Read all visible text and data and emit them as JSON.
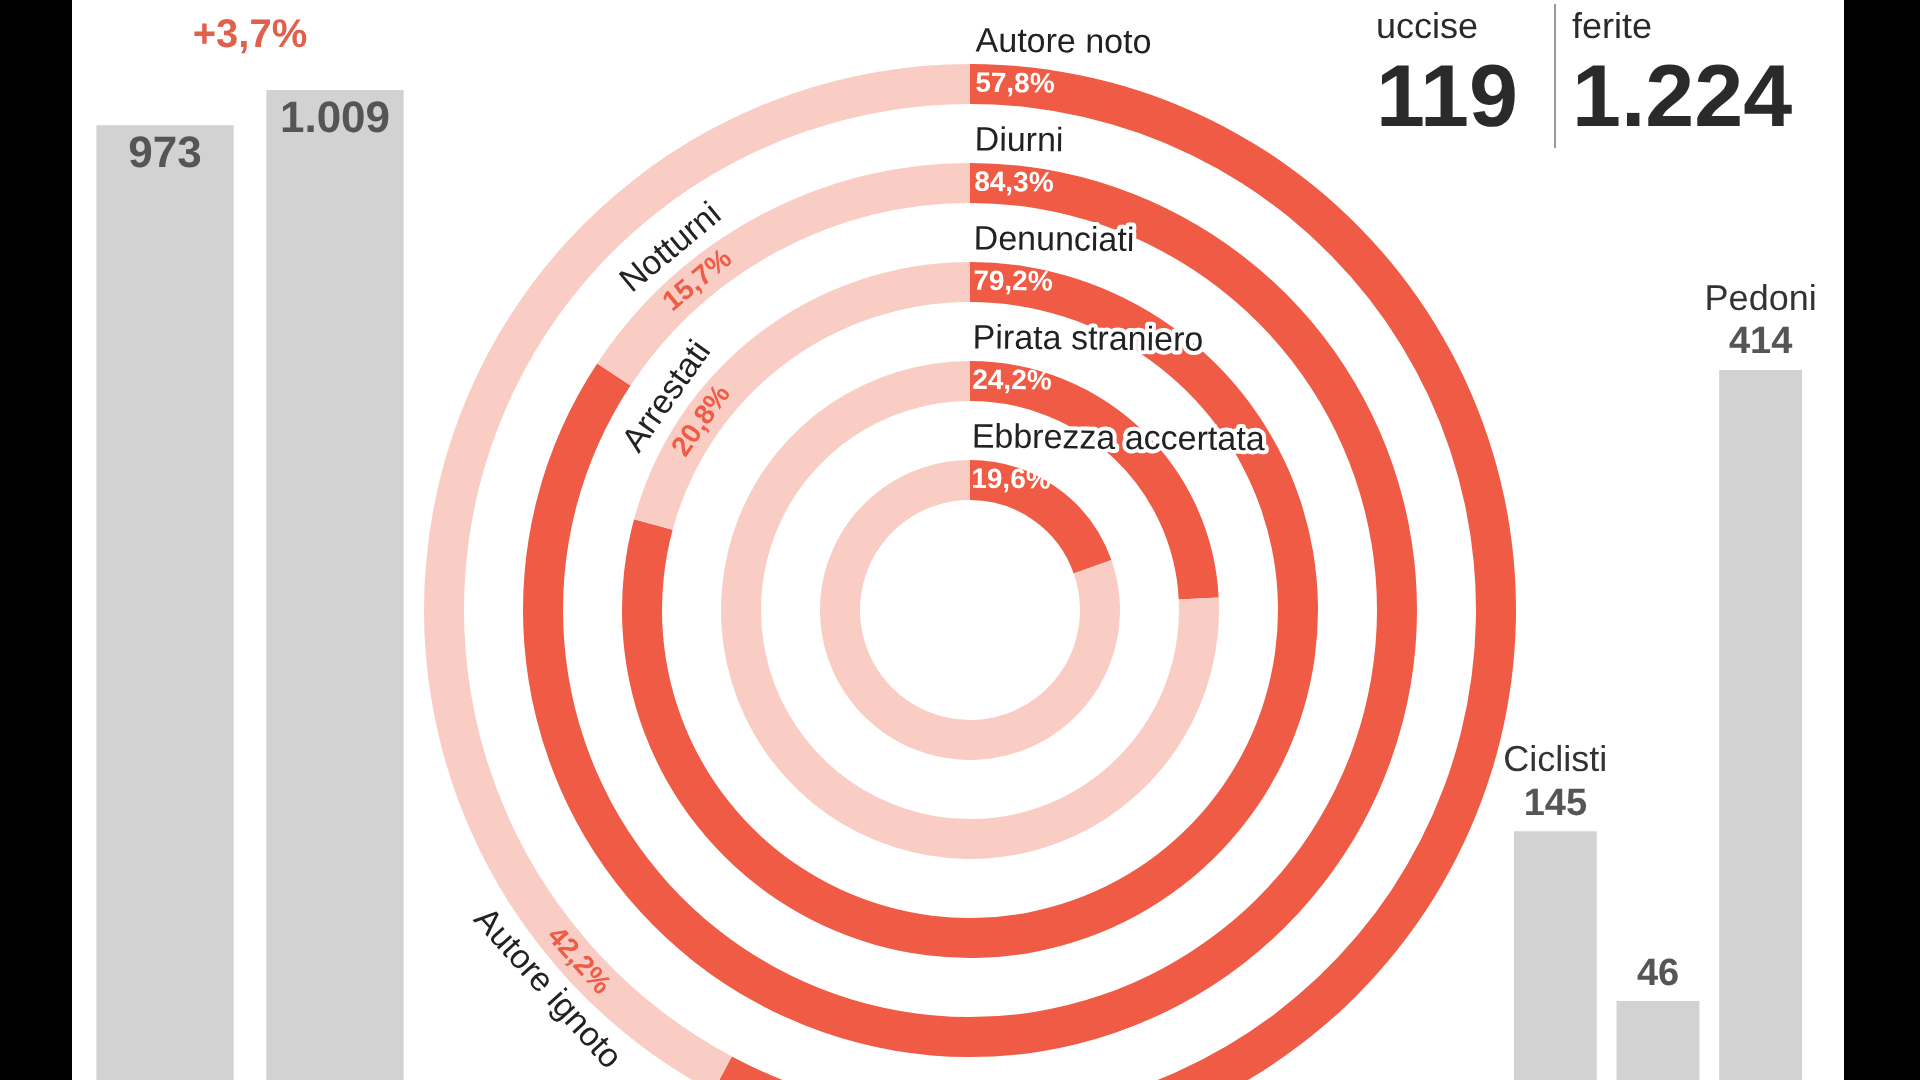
{
  "chart_data": [
    {
      "type": "bar",
      "categories": [
        null,
        null
      ],
      "values": [
        973,
        1009
      ],
      "value_labels": [
        "973",
        "1.009"
      ],
      "colors": [
        "#d2d2d2",
        "#d2d2d2"
      ],
      "annotations": [
        "+3,7%"
      ]
    },
    {
      "type": "donut",
      "categories": [
        "Autore noto",
        "Autore ignoto"
      ],
      "values": [
        57.8,
        42.2
      ],
      "value_labels": [
        "57,8%",
        "42,2%"
      ],
      "colors": [
        "#ef5b45",
        "#f9cdc4"
      ]
    },
    {
      "type": "donut",
      "categories": [
        "Diurni",
        "Notturni"
      ],
      "values": [
        84.3,
        15.7
      ],
      "value_labels": [
        "84,3%",
        "15,7%"
      ],
      "colors": [
        "#ef5b45",
        "#f9cdc4"
      ]
    },
    {
      "type": "donut",
      "categories": [
        "Denunciati",
        "Arrestati"
      ],
      "values": [
        79.2,
        20.8
      ],
      "value_labels": [
        "79,2%",
        "20,8%"
      ],
      "colors": [
        "#ef5b45",
        "#f9cdc4"
      ]
    },
    {
      "type": "donut",
      "categories": [
        "Pirata straniero",
        null
      ],
      "values": [
        24.2,
        75.8
      ],
      "value_labels": [
        "24,2%",
        null
      ],
      "colors": [
        "#ef5b45",
        "#f9cdc4"
      ]
    },
    {
      "type": "donut",
      "categories": [
        "Ebbrezza accertata",
        null
      ],
      "values": [
        19.6,
        80.4
      ],
      "value_labels": [
        "19,6%",
        null
      ],
      "colors": [
        "#ef5b45",
        "#f9cdc4"
      ]
    },
    {
      "type": "other",
      "annotations": [
        "uccise",
        "119",
        "ferite",
        "1.224"
      ]
    },
    {
      "type": "bar",
      "categories": [
        "Ciclisti",
        null,
        "Pedoni"
      ],
      "values": [
        145,
        46,
        414
      ],
      "data_labels": true,
      "colors": [
        "#d2d2d2",
        "#d2d2d2",
        "#d2d2d2"
      ]
    }
  ]
}
